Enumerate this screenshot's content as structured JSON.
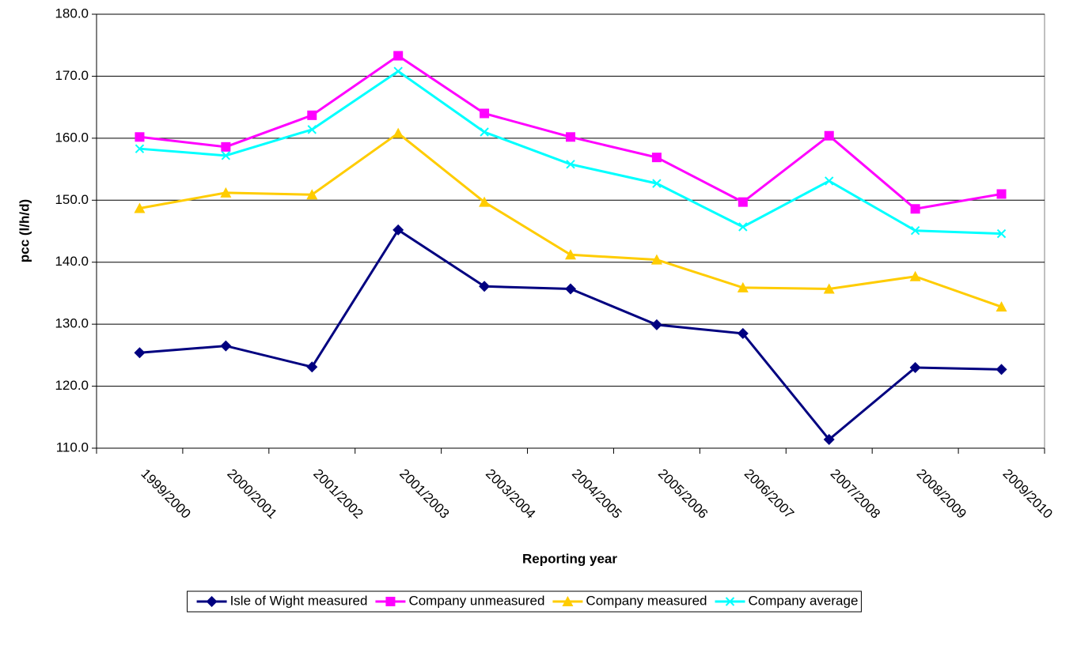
{
  "chart_data": {
    "type": "line",
    "y_label": "pcc (l/h/d)",
    "x_label": "Reporting year",
    "categories": [
      "1999/2000",
      "2000/2001",
      "2001/2002",
      "2001/2003",
      "2003/2004",
      "2004/2005",
      "2005/2006",
      "2006/2007",
      "2007/2008",
      "2008/2009",
      "2009/2010"
    ],
    "series": [
      {
        "name": "Isle of Wight measured",
        "color": "#000080",
        "marker": "diamond",
        "values": [
          125.4,
          126.5,
          123.1,
          145.2,
          136.1,
          135.7,
          129.9,
          128.5,
          111.4,
          123.0,
          122.7
        ]
      },
      {
        "name": "Company unmeasured",
        "color": "#ff00ff",
        "marker": "square",
        "values": [
          160.2,
          158.6,
          163.7,
          173.3,
          164.0,
          160.2,
          156.9,
          149.7,
          160.4,
          148.6,
          151.0
        ]
      },
      {
        "name": "Company measured",
        "color": "#ffcc00",
        "marker": "triangle",
        "values": [
          148.7,
          151.2,
          150.9,
          160.8,
          149.7,
          141.2,
          140.4,
          135.9,
          135.7,
          137.7,
          132.8
        ]
      },
      {
        "name": "Company average",
        "color": "#00ffff",
        "marker": "x",
        "values": [
          158.3,
          157.2,
          161.4,
          170.8,
          161.0,
          155.8,
          152.7,
          145.7,
          153.1,
          145.1,
          144.6
        ]
      }
    ],
    "ylim": [
      110,
      180
    ],
    "yticks": [
      {
        "value": 110,
        "label": "110.0"
      },
      {
        "value": 120,
        "label": "120.0"
      },
      {
        "value": 130,
        "label": "130.0"
      },
      {
        "value": 140,
        "label": "140.0"
      },
      {
        "value": 150,
        "label": "150.0"
      },
      {
        "value": 160,
        "label": "160.0"
      },
      {
        "value": 170,
        "label": "170.0"
      },
      {
        "value": 180,
        "label": "180.0"
      }
    ],
    "grid": true,
    "legend": "bottom"
  }
}
